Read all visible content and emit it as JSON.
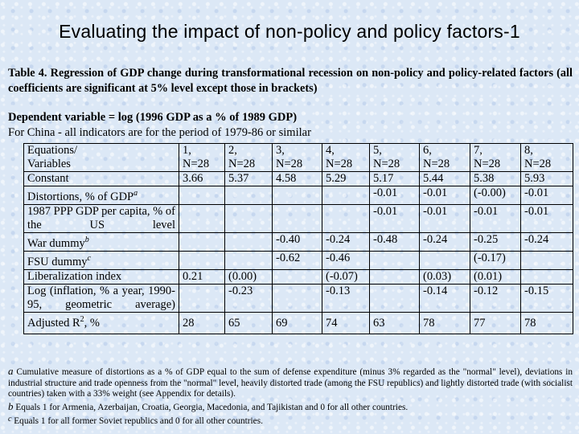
{
  "slide": {
    "title": "Evaluating the impact of non-policy and policy factors-1"
  },
  "table_caption": "Table 4. Regression of GDP change during transformational recession on non-policy and policy-related factors (all coefficients are significant at 5% level except those in brackets)",
  "dependent_variable": "Dependent variable = log (1996 GDP as a % of 1989 GDP)",
  "china_note": "For China - all indicators are for the period of 1979-86 or similar",
  "table": {
    "header": {
      "label_lines": [
        "Equations/",
        "Variables"
      ],
      "columns": [
        {
          "num": "1,",
          "n": "N=28"
        },
        {
          "num": "2,",
          "n": "N=28"
        },
        {
          "num": "3,",
          "n": "N=28"
        },
        {
          "num": "4,",
          "n": "N=28"
        },
        {
          "num": "5,",
          "n": "N=28"
        },
        {
          "num": "6,",
          "n": "N=28"
        },
        {
          "num": "7,",
          "n": "N=28"
        },
        {
          "num": "8,",
          "n": "N=28"
        }
      ]
    },
    "rows": [
      {
        "label": "Constant",
        "values": [
          "3.66",
          "5.37",
          "4.58",
          "5.29",
          "5.17",
          "5.44",
          "5.38",
          "5.93"
        ]
      },
      {
        "label": "Distortions, % of GDP",
        "label_sup": "a",
        "values": [
          "",
          "",
          "",
          "",
          "-0.01",
          "-0.01",
          "(-0.00)",
          "-0.01"
        ]
      },
      {
        "label": "1987 PPP GDP per capita, % of the US level",
        "values": [
          "",
          "",
          "",
          "",
          "-0.01",
          "-0.01",
          "-0.01",
          "-0.01"
        ]
      },
      {
        "label": "War dummy",
        "label_sup": "b",
        "values": [
          "",
          "",
          "-0.40",
          "-0.24",
          "-0.48",
          "-0.24",
          "-0.25",
          "-0.24"
        ]
      },
      {
        "label": "FSU dummy",
        "label_sup": "c",
        "values": [
          "",
          "",
          "-0.62",
          "-0.46",
          "",
          "",
          "(-0.17)",
          ""
        ]
      },
      {
        "label": "Liberalization index",
        "values": [
          "0.21",
          "(0.00)",
          "",
          "(-0.07)",
          "",
          "(0.03)",
          "(0.01)",
          ""
        ]
      },
      {
        "label": "Log (inflation, % a year, 1990-95, geometric average)",
        "values": [
          "",
          "-0.23",
          "",
          "-0.13",
          "",
          "-0.14",
          "-0.12",
          "-0.15"
        ]
      },
      {
        "label": "Adjusted R2, %",
        "label_pre": "Adjusted R",
        "label_sup": "2",
        "label_post": ", %",
        "values": [
          "28",
          "65",
          "69",
          "74",
          "63",
          "78",
          "77",
          "78"
        ]
      }
    ]
  },
  "footnotes": {
    "a": {
      "mark": "a",
      "text": "Cumulative measure of distortions as a % of GDP equal to the sum of defense expenditure (minus 3% regarded as the \"normal\" level), deviations in industrial structure and trade openness from the \"normal\" level, heavily distorted trade (among the FSU republics) and lightly distorted trade (with socialist countries) taken with a 33% weight (see Appendix for details)."
    },
    "b": {
      "mark": "b",
      "text": "Equals 1 for Armenia, Azerbaijan, Croatia, Georgia, Macedonia, and Tajikistan and 0 for all other countries."
    },
    "c": {
      "mark": "c",
      "text": "Equals 1 for all former Soviet republics and 0 for all other countries."
    }
  }
}
